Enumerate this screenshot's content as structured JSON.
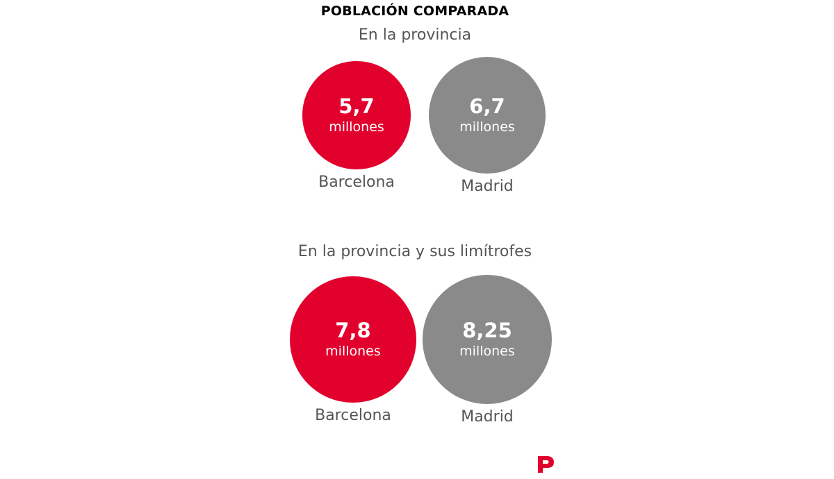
{
  "title": "POBLACIÓN COMPARADA",
  "colors": {
    "barcelona": "#e2012d",
    "madrid": "#8a8a8a",
    "logo": "#e2012d"
  },
  "logo": {
    "icon": "periodico-p-logo-icon"
  },
  "chart_data": [
    {
      "type": "bubble",
      "title": "En la provincia",
      "unit": "millones",
      "categories": [
        "Barcelona",
        "Madrid"
      ],
      "values": [
        5.7,
        6.7
      ],
      "value_labels": [
        "5,7",
        "6,7"
      ],
      "unit_labels": [
        "millones",
        "millones"
      ]
    },
    {
      "type": "bubble",
      "title": "En la provincia y sus limítrofes",
      "unit": "millones",
      "categories": [
        "Barcelona",
        "Madrid"
      ],
      "values": [
        7.8,
        8.25
      ],
      "value_labels": [
        "7,8",
        "8,25"
      ],
      "unit_labels": [
        "millones",
        "millones"
      ]
    }
  ]
}
